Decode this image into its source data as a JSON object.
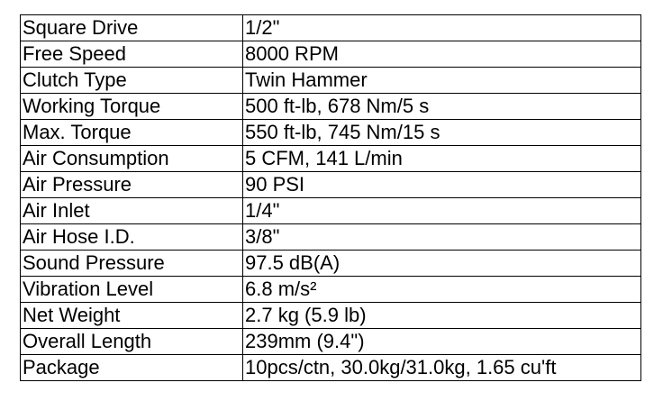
{
  "specs": [
    {
      "label": "Square Drive",
      "value": "1/2\""
    },
    {
      "label": "Free Speed",
      "value": "8000 RPM"
    },
    {
      "label": "Clutch Type",
      "value": "Twin Hammer"
    },
    {
      "label": "Working Torque",
      "value": "500 ft-lb, 678 Nm/5 s"
    },
    {
      "label": "Max. Torque",
      "value": "550 ft-lb, 745 Nm/15 s"
    },
    {
      "label": "Air Consumption",
      "value": "5 CFM, 141 L/min"
    },
    {
      "label": "Air Pressure",
      "value": "90 PSI"
    },
    {
      "label": "Air Inlet",
      "value": "1/4\""
    },
    {
      "label": "Air Hose I.D.",
      "value": "3/8\""
    },
    {
      "label": "Sound Pressure",
      "value": "97.5 dB(A)"
    },
    {
      "label": "Vibration Level",
      "value": "6.8 m/s²"
    },
    {
      "label": "Net Weight",
      "value": "2.7 kg (5.9 lb)"
    },
    {
      "label": "Overall Length",
      "value": "239mm (9.4\")"
    },
    {
      "label": "Package",
      "value": "10pcs/ctn, 30.0kg/31.0kg, 1.65 cu'ft"
    }
  ]
}
